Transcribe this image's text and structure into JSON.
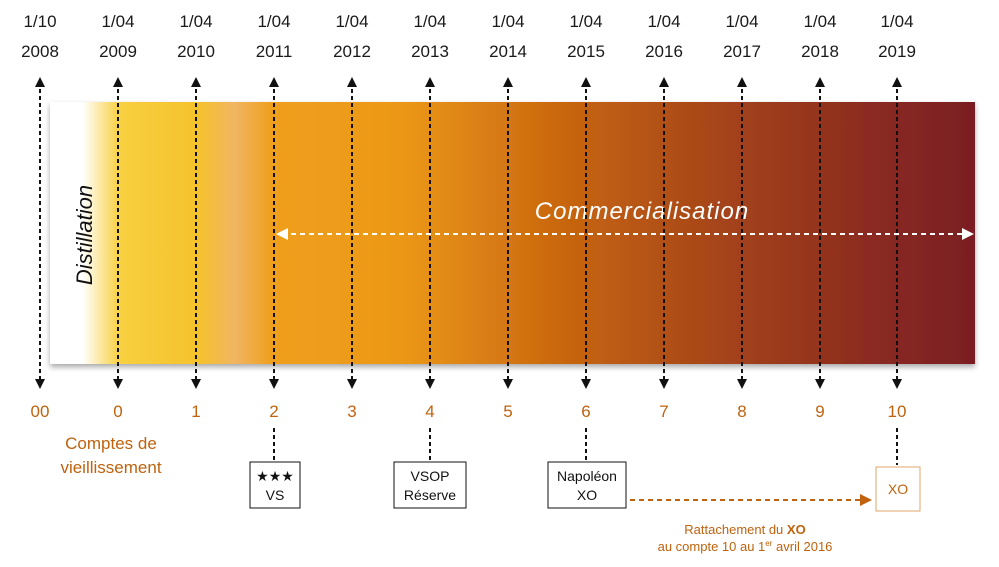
{
  "dates": [
    {
      "d": "1/10",
      "y": "2008"
    },
    {
      "d": "1/04",
      "y": "2009"
    },
    {
      "d": "1/04",
      "y": "2010"
    },
    {
      "d": "1/04",
      "y": "2011"
    },
    {
      "d": "1/04",
      "y": "2012"
    },
    {
      "d": "1/04",
      "y": "2013"
    },
    {
      "d": "1/04",
      "y": "2014"
    },
    {
      "d": "1/04",
      "y": "2015"
    },
    {
      "d": "1/04",
      "y": "2016"
    },
    {
      "d": "1/04",
      "y": "2017"
    },
    {
      "d": "1/04",
      "y": "2018"
    },
    {
      "d": "1/04",
      "y": "2019"
    }
  ],
  "accounts": [
    "00",
    "0",
    "1",
    "2",
    "3",
    "4",
    "5",
    "6",
    "7",
    "8",
    "9",
    "10"
  ],
  "accounts_label": [
    "Comptes de",
    "vieillissement"
  ],
  "distillation_label": "Distillation",
  "commercialisation_label": "Commercialisation",
  "boxes": [
    {
      "line1": "★★★",
      "line2": "VS"
    },
    {
      "line1": "VSOP",
      "line2": "Réserve"
    },
    {
      "line1": "Napoléon",
      "line2": "XO"
    },
    {
      "line1": "XO",
      "line2": ""
    }
  ],
  "note": {
    "line1_prefix": "Rattachement du ",
    "line1_bold": "XO",
    "line2_prefix": "au compte 10 au 1",
    "line2_sup": "er",
    "line2_suffix": " avril 2016"
  },
  "colors": {
    "accent": "#c0620e",
    "band_start": "#f6c52a",
    "band_mid": "#ee9a1a",
    "band_end": "#7a1e22",
    "text": "#1a1a1a"
  }
}
